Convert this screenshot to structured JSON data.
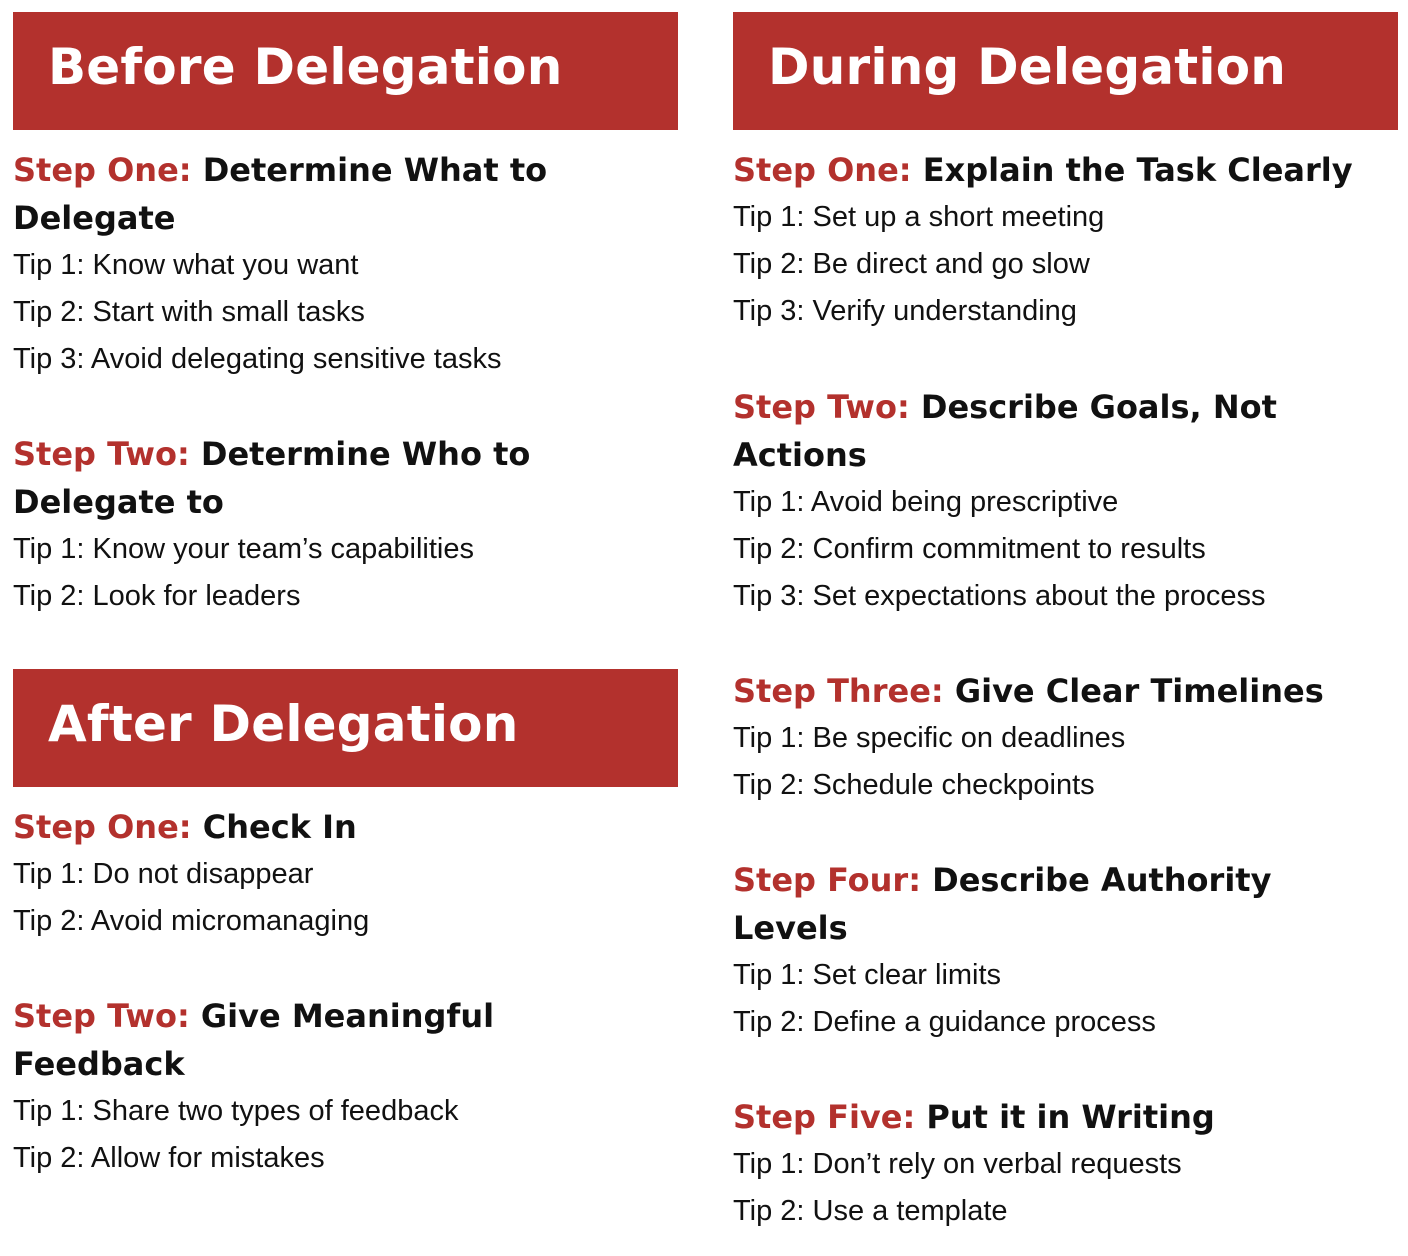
{
  "before": {
    "title": "Before Delegation",
    "steps": [
      {
        "label": "Step One:",
        "title": "Determine What to Delegate",
        "tips": [
          "Tip 1: Know what you want",
          "Tip 2: Start with small tasks",
          "Tip 3: Avoid delegating sensitive tasks"
        ]
      },
      {
        "label": "Step Two:",
        "title": "Determine Who to Delegate to",
        "tips": [
          "Tip 1: Know your team’s capabilities",
          "Tip 2: Look for leaders"
        ]
      }
    ]
  },
  "after": {
    "title": "After Delegation",
    "steps": [
      {
        "label": "Step One:",
        "title": "Check In",
        "tips": [
          "Tip 1: Do not disappear",
          "Tip 2: Avoid micromanaging"
        ]
      },
      {
        "label": "Step Two:",
        "title": "Give Meaningful Feedback",
        "tips": [
          "Tip 1: Share two types of feedback",
          "Tip 2: Allow for mistakes"
        ]
      }
    ]
  },
  "during": {
    "title": "During Delegation",
    "steps": [
      {
        "label": "Step One:",
        "title": "Explain the Task Clearly",
        "tips": [
          "Tip 1: Set up a short meeting",
          "Tip 2: Be direct and go slow",
          "Tip 3: Verify understanding"
        ]
      },
      {
        "label": "Step Two:",
        "title": "Describe Goals, Not Actions",
        "tips": [
          "Tip 1: Avoid being prescriptive",
          "Tip 2: Confirm commitment to results",
          "Tip 3: Set expectations about the process"
        ]
      },
      {
        "label": "Step Three:",
        "title": "Give Clear Timelines",
        "tips": [
          "Tip 1: Be specific on deadlines",
          "Tip 2: Schedule checkpoints"
        ]
      },
      {
        "label": "Step Four:",
        "title": "Describe Authority Levels",
        "tips": [
          "Tip 1: Set clear limits",
          "Tip 2: Define a guidance process"
        ]
      },
      {
        "label": "Step Five:",
        "title": "Put it in Writing",
        "tips": [
          "Tip 1: Don’t rely on verbal requests",
          "Tip 2: Use a template"
        ]
      }
    ]
  },
  "colors": {
    "accent": "#b3312d",
    "text": "#111111",
    "background": "#ffffff"
  }
}
